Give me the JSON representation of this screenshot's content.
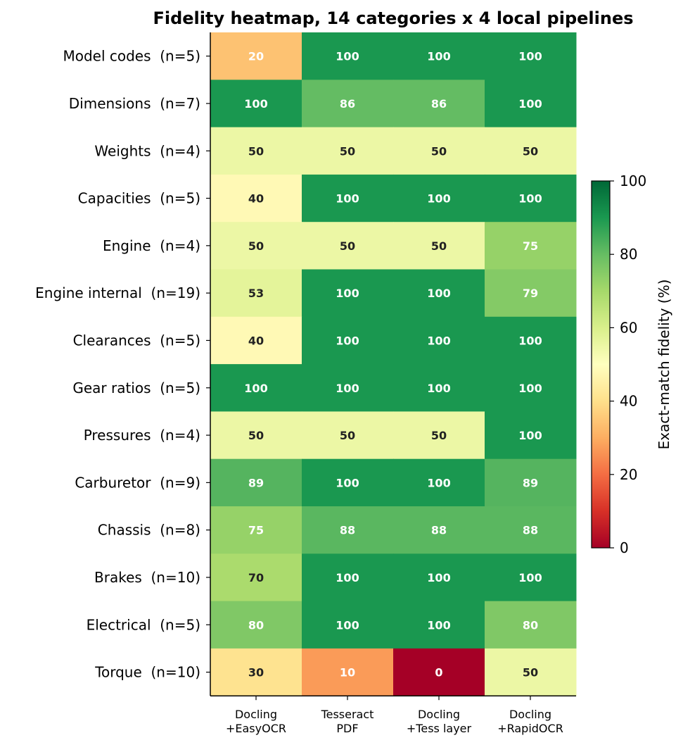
{
  "chart_data": {
    "type": "heatmap",
    "title": "Fidelity heatmap, 14 categories x 4 local pipelines",
    "rows": [
      "Model codes  (n=5)",
      "Dimensions  (n=7)",
      "Weights  (n=4)",
      "Capacities  (n=5)",
      "Engine  (n=4)",
      "Engine internal  (n=19)",
      "Clearances  (n=5)",
      "Gear ratios  (n=5)",
      "Pressures  (n=4)",
      "Carburetor  (n=9)",
      "Chassis  (n=8)",
      "Brakes  (n=10)",
      "Electrical  (n=5)",
      "Torque  (n=10)"
    ],
    "columns": [
      [
        "Docling",
        "+EasyOCR"
      ],
      [
        "Tesseract",
        "PDF"
      ],
      [
        "Docling",
        "+Tess layer"
      ],
      [
        "Docling",
        "+RapidOCR"
      ]
    ],
    "values": [
      [
        20,
        100,
        100,
        100
      ],
      [
        100,
        86,
        86,
        100
      ],
      [
        50,
        50,
        50,
        50
      ],
      [
        40,
        100,
        100,
        100
      ],
      [
        50,
        50,
        50,
        75
      ],
      [
        53,
        100,
        100,
        79
      ],
      [
        40,
        100,
        100,
        100
      ],
      [
        100,
        100,
        100,
        100
      ],
      [
        50,
        50,
        50,
        100
      ],
      [
        89,
        100,
        100,
        89
      ],
      [
        75,
        88,
        88,
        88
      ],
      [
        70,
        100,
        100,
        100
      ],
      [
        80,
        100,
        100,
        80
      ],
      [
        30,
        10,
        0,
        50
      ]
    ],
    "colorbar": {
      "label": "Exact-match fidelity (%)",
      "range": [
        0,
        100
      ],
      "ticks": [
        0,
        20,
        40,
        60,
        80,
        100
      ],
      "colormap": "RdYlGn"
    }
  }
}
